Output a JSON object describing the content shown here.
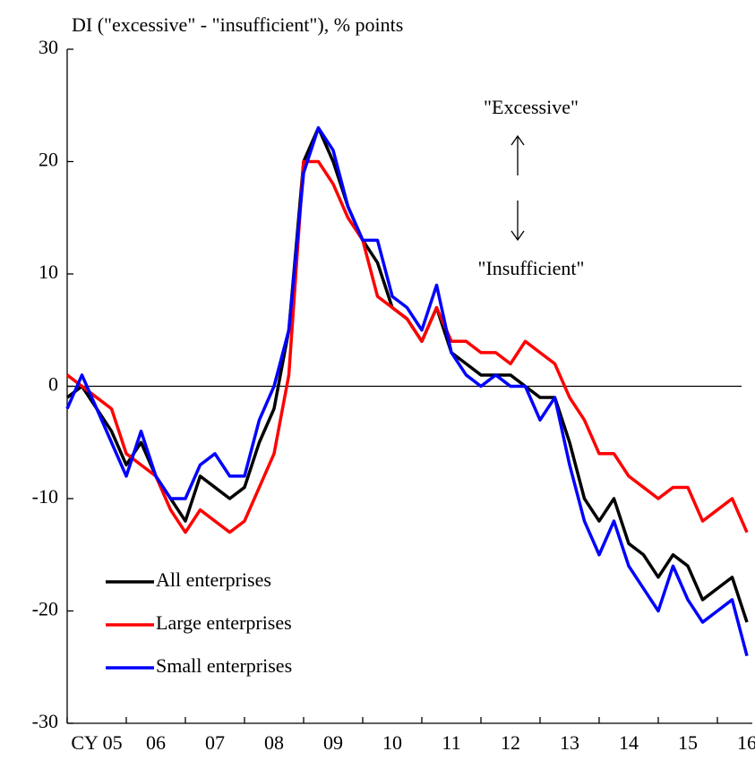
{
  "chart_data": {
    "type": "line",
    "y_label": "DI (\"excessive\" - \"insufficient\"), % points",
    "annotations": [
      "\"Excessive\"",
      "\"Insufficient\""
    ],
    "categories": [
      null,
      null,
      "CY 05",
      null,
      null,
      null,
      "06",
      null,
      null,
      null,
      "07",
      null,
      null,
      null,
      "08",
      null,
      null,
      null,
      "09",
      null,
      null,
      null,
      "10",
      null,
      null,
      null,
      "11",
      null,
      null,
      null,
      "12",
      null,
      null,
      null,
      "13",
      null,
      null,
      null,
      "14",
      null,
      null,
      null,
      "15",
      null,
      null,
      null,
      "16"
    ],
    "ylim": [
      -30,
      30
    ],
    "yticks": [
      -30,
      -20,
      -10,
      0,
      10,
      20,
      30
    ],
    "legend": "lower left",
    "series": [
      {
        "name": "All enterprises",
        "color": "#000000",
        "values": [
          -1,
          0,
          -2,
          -4,
          -7,
          -5,
          -8,
          -10,
          -12,
          -8,
          -9,
          -10,
          -9,
          -5,
          -2,
          5,
          20,
          23,
          20,
          16,
          13,
          11,
          7,
          6,
          4,
          7,
          3,
          2,
          1,
          1,
          1,
          0,
          -1,
          -1,
          -5,
          -10,
          -12,
          -10,
          -14,
          -15,
          -17,
          -15,
          -16,
          -19,
          -18,
          -17,
          -21
        ]
      },
      {
        "name": "Large enterprises",
        "color": "#ff0000",
        "values": [
          1,
          0,
          -1,
          -2,
          -6,
          -7,
          -8,
          -11,
          -13,
          -11,
          -12,
          -13,
          -12,
          -9,
          -6,
          1,
          20,
          20,
          18,
          15,
          13,
          8,
          7,
          6,
          4,
          7,
          4,
          4,
          3,
          3,
          2,
          4,
          3,
          2,
          -1,
          -3,
          -6,
          -6,
          -8,
          -9,
          -10,
          -9,
          -9,
          -12,
          -11,
          -10,
          -13
        ]
      },
      {
        "name": "Small enterprises",
        "color": "#0000ff",
        "values": [
          -2,
          1,
          -2,
          -5,
          -8,
          -4,
          -8,
          -10,
          -10,
          -7,
          -6,
          -8,
          -8,
          -3,
          0,
          5,
          19,
          23,
          21,
          16,
          13,
          13,
          8,
          7,
          5,
          9,
          3,
          1,
          0,
          1,
          0,
          0,
          -3,
          -1,
          -7,
          -12,
          -15,
          -12,
          -16,
          -18,
          -20,
          -16,
          -19,
          -21,
          -20,
          -19,
          -24
        ]
      }
    ]
  }
}
